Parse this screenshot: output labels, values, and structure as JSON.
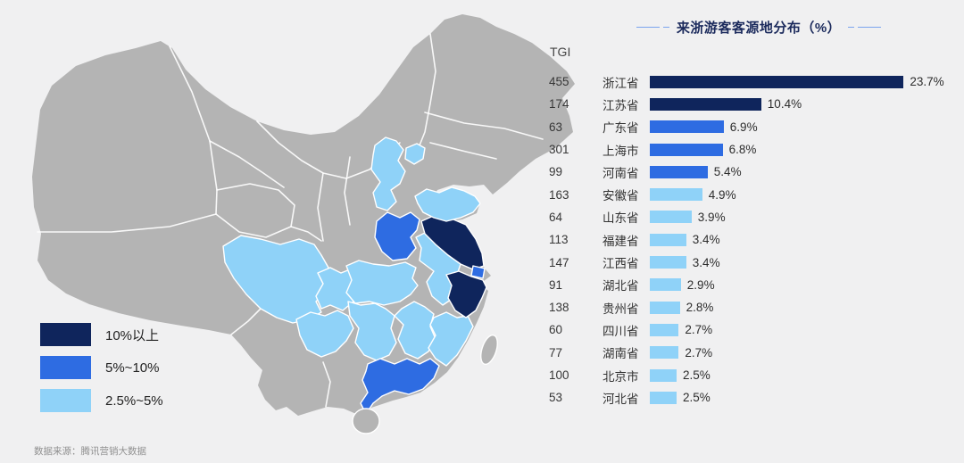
{
  "page": {
    "background": "#f0f0f1"
  },
  "chart_data": {
    "type": "bar",
    "title": "来浙游客客源地分布（%）",
    "value_column_header": "TGI",
    "orientation": "horizontal",
    "xlim": [
      0,
      24
    ],
    "grid": false,
    "categories": [
      "浙江省",
      "江苏省",
      "广东省",
      "上海市",
      "河南省",
      "安徽省",
      "山东省",
      "福建省",
      "江西省",
      "湖北省",
      "贵州省",
      "四川省",
      "湖南省",
      "北京市",
      "河北省"
    ],
    "tgi": [
      455,
      174,
      63,
      301,
      99,
      163,
      64,
      113,
      147,
      91,
      138,
      60,
      77,
      100,
      53
    ],
    "values": [
      23.7,
      10.4,
      6.9,
      6.8,
      5.4,
      4.9,
      3.9,
      3.4,
      3.4,
      2.9,
      2.8,
      2.7,
      2.7,
      2.5,
      2.5
    ],
    "labels": [
      "23.7%",
      "10.4%",
      "6.9%",
      "6.8%",
      "5.4%",
      "4.9%",
      "3.9%",
      "3.4%",
      "3.4%",
      "2.9%",
      "2.8%",
      "2.7%",
      "2.7%",
      "2.5%",
      "2.5%"
    ],
    "tiers": [
      "dark",
      "dark",
      "mid",
      "mid",
      "mid",
      "light",
      "light",
      "light",
      "light",
      "light",
      "light",
      "light",
      "light",
      "light",
      "light"
    ]
  },
  "tier_colors": {
    "dark": "#0f255c",
    "mid": "#2e6ce2",
    "light": "#8fd2f8"
  },
  "legend": {
    "items": [
      {
        "label": "10%以上",
        "tier": "dark"
      },
      {
        "label": "5%~10%",
        "tier": "mid"
      },
      {
        "label": "2.5%~5%",
        "tier": "light"
      }
    ]
  },
  "map": {
    "base_color": "#b4b4b4",
    "border_color": "#ffffff",
    "regions": {
      "hebei": "light",
      "beijing": "light",
      "shandong": "light",
      "henan": "mid",
      "jiangsu": "dark",
      "shanghai": "mid",
      "anhui": "light",
      "zhejiang": "dark",
      "hubei": "light",
      "chongqing": "light",
      "sichuan": "light",
      "guizhou": "light",
      "hunan": "light",
      "jiangxi": "light",
      "fujian": "light",
      "guangdong": "mid",
      "hainan": "none",
      "taiwan": "none"
    }
  },
  "footer": {
    "source": "数据来源：腾讯营销大数据"
  }
}
